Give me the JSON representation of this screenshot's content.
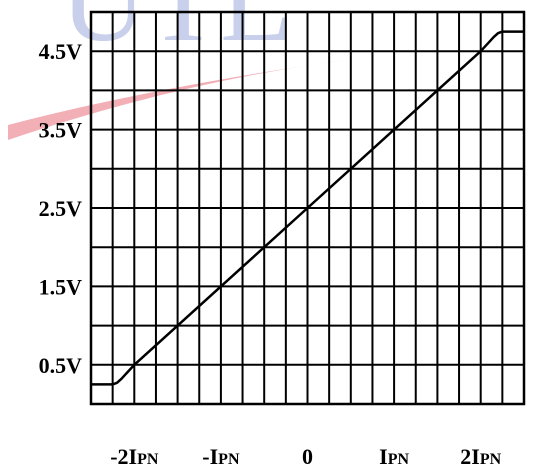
{
  "watermark": {
    "text": "UTL",
    "color": "#c8d0ec",
    "swoosh_color": "#e8707a"
  },
  "chart_data": {
    "type": "line",
    "title": "",
    "xlabel": "",
    "ylabel": "",
    "grid": true,
    "xlim": [
      -2.5,
      2.5
    ],
    "ylim": [
      0,
      5
    ],
    "x_ticks": [
      {
        "value": -2,
        "label_pre": "-2I",
        "label_sub": "PN"
      },
      {
        "value": -1,
        "label_pre": "-I",
        "label_sub": "PN"
      },
      {
        "value": 0,
        "label_pre": "0",
        "label_sub": ""
      },
      {
        "value": 1,
        "label_pre": "I",
        "label_sub": "PN"
      },
      {
        "value": 2,
        "label_pre": "2I",
        "label_sub": "PN"
      }
    ],
    "y_ticks": [
      {
        "value": 0.5,
        "label": "0.5V"
      },
      {
        "value": 1.5,
        "label": "1.5V"
      },
      {
        "value": 2.5,
        "label": "2.5V"
      },
      {
        "value": 3.5,
        "label": "3.5V"
      },
      {
        "value": 4.5,
        "label": "4.5V"
      }
    ],
    "x_gridlines": [
      -2.5,
      -2.25,
      -2,
      -1.75,
      -1.5,
      -1.25,
      -1,
      -0.75,
      -0.5,
      -0.25,
      0,
      0.25,
      0.5,
      0.75,
      1,
      1.25,
      1.5,
      1.75,
      2,
      2.25,
      2.5
    ],
    "y_gridlines": [
      0,
      0.5,
      1,
      1.5,
      2,
      2.5,
      3,
      3.5,
      4,
      4.5,
      5
    ],
    "series": [
      {
        "color": "#000000",
        "x": [
          -2.5,
          -2.25,
          -2.2,
          -2.15,
          -2.1,
          -2.0,
          0,
          2.0,
          2.1,
          2.15,
          2.2,
          2.25,
          2.5
        ],
        "y": [
          0.25,
          0.25,
          0.27,
          0.32,
          0.38,
          0.5,
          2.5,
          4.5,
          4.62,
          4.68,
          4.73,
          4.75,
          4.75
        ]
      }
    ]
  }
}
